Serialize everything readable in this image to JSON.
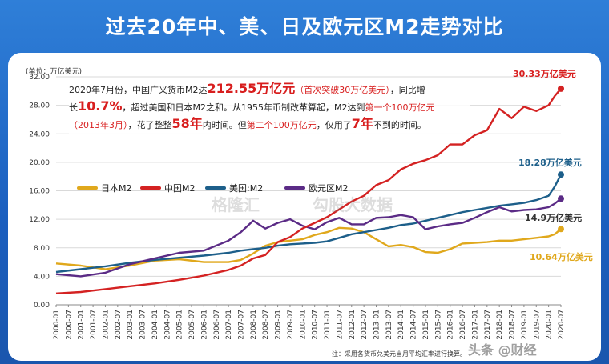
{
  "title": "过去20年中、美、日及欧元区M2走势对比",
  "unit_label": "(单位：万亿美元)",
  "annotation": {
    "p1": "2020年7月份，中国广义货币M2达",
    "p1_big": "212.55万亿元",
    "p1_red": "（首次突破30万亿美元）",
    "p1_end": "，同比增",
    "p2_a": "长",
    "p2_big": "10.7%",
    "p2_b": "，超过美国和日本M2之和。从1955年币制改革算起，M2达到",
    "p2_red": "第一个100万亿元",
    "p3_red": "（2013年3月）",
    "p3_a": "，花了整整",
    "p3_big": "58年",
    "p3_b": "内时间。但",
    "p3_red2": "第二个100万亿元",
    "p3_c": "，仅用了",
    "p3_big2": "7年",
    "p3_d": "不到的时间。"
  },
  "end_labels": {
    "china": "30.33万亿美元",
    "us": "18.28万亿美元",
    "eu": "14.9万亿美元",
    "japan": "10.64万亿美元"
  },
  "source_note": "注：采用各货币兑美元当月平均汇率进行换算。",
  "watermarks": {
    "left": "格隆汇",
    "right": "勾股大数据",
    "credit": "头条 @财经"
  },
  "colors": {
    "japan": "#e0a81c",
    "china": "#d42222",
    "us": "#1d5f8a",
    "eu": "#5b2b86",
    "accent": "#d81e1e"
  },
  "chart_data": {
    "type": "line",
    "ylabel": "(单位：万亿美元)",
    "ylim": [
      0,
      32
    ],
    "yticks": [
      "0.00",
      "4.00",
      "8.00",
      "12.00",
      "16.00",
      "20.00",
      "24.00",
      "28.00",
      "32.00"
    ],
    "x_ticks": [
      "2000-01",
      "2000-07",
      "2001-01",
      "2001-07",
      "2002-01",
      "2002-07",
      "2003-01",
      "2003-07",
      "2004-01",
      "2004-07",
      "2005-01",
      "2005-07",
      "2006-01",
      "2006-07",
      "2007-01",
      "2007-07",
      "2008-01",
      "2008-07",
      "2009-01",
      "2009-07",
      "2010-01",
      "2010-07",
      "2011-01",
      "2011-07",
      "2012-01",
      "2012-07",
      "2013-01",
      "2013-07",
      "2014-01",
      "2014-07",
      "2015-01",
      "2015-07",
      "2016-01",
      "2016-07",
      "2017-01",
      "2017-07",
      "2018-01",
      "2018-07",
      "2019-01",
      "2019-07",
      "2020-01",
      "2020-07"
    ],
    "x": [
      2000.0,
      2001.0,
      2002.0,
      2003.0,
      2004.0,
      2005.0,
      2006.0,
      2007.0,
      2007.5,
      2008.0,
      2008.5,
      2009.0,
      2009.5,
      2010.0,
      2010.5,
      2011.0,
      2011.5,
      2012.0,
      2012.5,
      2013.0,
      2013.5,
      2014.0,
      2014.5,
      2015.0,
      2015.5,
      2016.0,
      2016.5,
      2017.0,
      2017.5,
      2018.0,
      2018.5,
      2019.0,
      2019.5,
      2020.0,
      2020.25,
      2020.5
    ],
    "series": [
      {
        "name": "日本M2",
        "key": "japan",
        "values": [
          5.8,
          5.5,
          5.0,
          5.5,
          6.2,
          6.4,
          6.0,
          6.0,
          6.3,
          7.2,
          8.3,
          8.8,
          9.0,
          9.2,
          9.8,
          10.2,
          10.8,
          10.7,
          10.2,
          9.2,
          8.2,
          8.4,
          8.1,
          7.4,
          7.3,
          7.8,
          8.6,
          8.7,
          8.8,
          9.0,
          9.0,
          9.2,
          9.4,
          9.6,
          9.9,
          10.64
        ]
      },
      {
        "name": "中国M2",
        "key": "china",
        "values": [
          1.6,
          1.8,
          2.2,
          2.6,
          3.0,
          3.5,
          4.1,
          4.9,
          5.5,
          6.5,
          7.0,
          8.8,
          9.5,
          10.7,
          11.5,
          12.3,
          13.4,
          14.5,
          15.3,
          16.8,
          17.5,
          19.0,
          19.8,
          20.3,
          21.0,
          22.5,
          22.5,
          23.8,
          24.5,
          27.5,
          26.2,
          27.8,
          27.2,
          28.0,
          29.3,
          30.33
        ]
      },
      {
        "name": "美国:M2",
        "key": "us",
        "values": [
          4.6,
          5.0,
          5.4,
          5.9,
          6.3,
          6.6,
          6.9,
          7.3,
          7.6,
          7.8,
          8.0,
          8.3,
          8.5,
          8.6,
          8.7,
          8.9,
          9.4,
          9.9,
          10.2,
          10.5,
          10.8,
          11.2,
          11.4,
          11.8,
          12.2,
          12.6,
          13.0,
          13.3,
          13.6,
          13.9,
          14.1,
          14.3,
          14.7,
          15.3,
          16.6,
          18.28
        ]
      },
      {
        "name": "欧元区M2",
        "key": "eu",
        "values": [
          4.3,
          4.0,
          4.5,
          5.7,
          6.5,
          7.3,
          7.6,
          9.0,
          10.2,
          11.8,
          10.7,
          11.5,
          12.0,
          11.1,
          10.6,
          11.6,
          12.2,
          11.3,
          11.3,
          12.2,
          12.3,
          12.6,
          12.3,
          10.6,
          11.0,
          11.3,
          11.5,
          12.2,
          13.0,
          13.7,
          13.1,
          13.3,
          13.4,
          13.7,
          14.2,
          14.9
        ]
      }
    ]
  }
}
